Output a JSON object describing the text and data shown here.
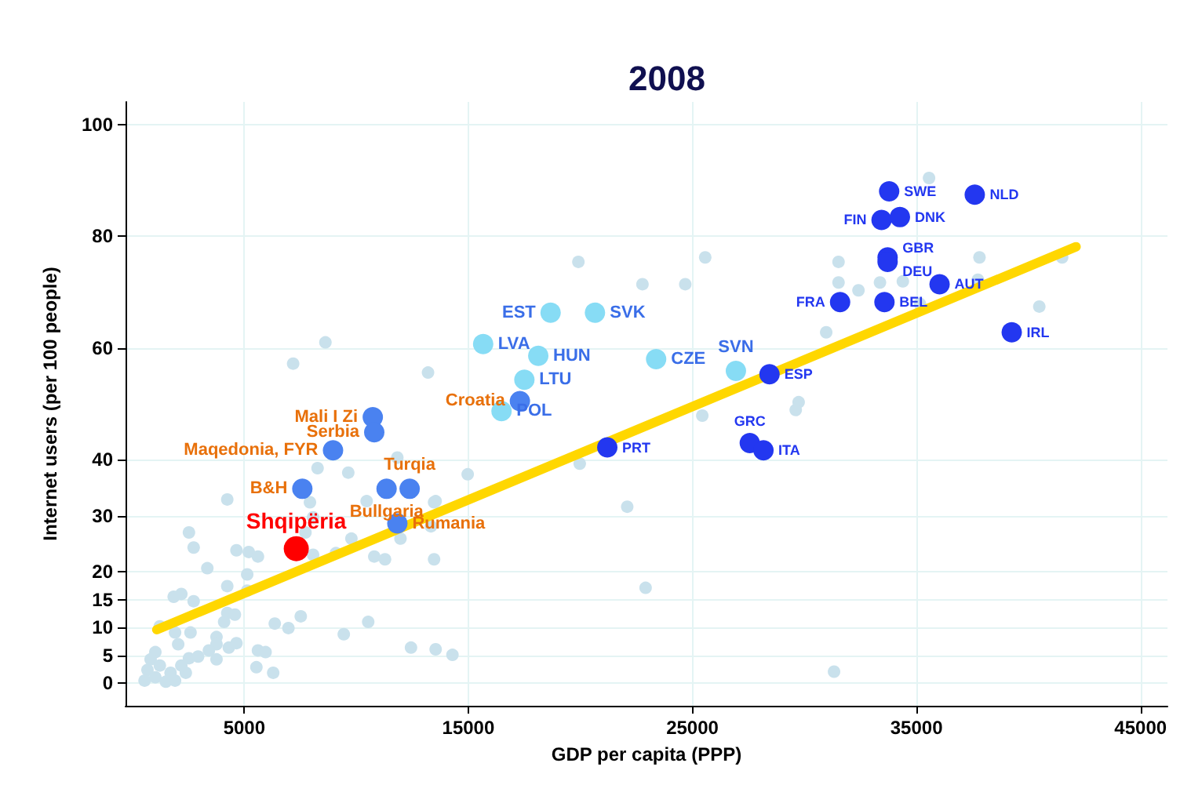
{
  "chart_data": {
    "type": "scatter",
    "title": "2008",
    "xlabel": "GDP per capita (PPP)",
    "ylabel": "Internet users (per 100 people)",
    "xlim": [
      -300,
      46200
    ],
    "xticks": [
      5000,
      15000,
      25000,
      35000,
      45000
    ],
    "ylim": [
      -4,
      104
    ],
    "yticks": [
      0,
      5,
      10,
      15,
      20,
      30,
      40,
      60,
      80,
      100
    ],
    "grid": true,
    "marker": "circle",
    "series": [
      {
        "color": "#c9e1ec",
        "x": [
          19910,
          25570,
          22770,
          35560,
          41500,
          40480,
          31520,
          31520,
          32410,
          33370,
          34390,
          37810,
          37740,
          35150,
          30970,
          24680,
          25440,
          29740,
          29610,
          7180,
          8620,
          13200,
          19970,
          22090,
          22910,
          31320,
          14970,
          11830,
          8270,
          9640,
          13540,
          10460,
          7930,
          9780,
          9090,
          4240,
          2530,
          2740,
          3350,
          4650,
          5200,
          5610,
          5130,
          4240,
          5130,
          1850,
          2190,
          2740,
          4240,
          4580,
          4100,
          1230,
          1910,
          2600,
          3760,
          2050,
          3760,
          3420,
          4310,
          4650,
          2530,
          2940,
          1030,
          820,
          680,
          1030,
          1500,
          1910,
          2390,
          1230,
          550,
          1710,
          2190,
          3760,
          5610,
          5950,
          5540,
          6290,
          6360,
          6970,
          7520,
          9440,
          10530,
          8070,
          7730,
          8070,
          10800,
          11280,
          11970,
          13470,
          13330,
          13470,
          12440,
          13540,
          14290
        ],
        "values": [
          75.4,
          76.2,
          71.4,
          90.4,
          76.2,
          67.4,
          75.4,
          71.7,
          70.3,
          71.7,
          71.9,
          76.2,
          72.2,
          67.9,
          62.8,
          71.4,
          47.9,
          50.3,
          48.9,
          57.2,
          61.0,
          55.6,
          39.3,
          31.6,
          17.1,
          2.1,
          37.4,
          40.4,
          38.5,
          37.7,
          32.6,
          32.6,
          32.4,
          25.9,
          23.3,
          32.9,
          27.0,
          24.3,
          20.6,
          23.8,
          23.5,
          22.7,
          19.5,
          17.4,
          16.6,
          15.5,
          16.0,
          14.7,
          12.6,
          12.3,
          11.0,
          10.2,
          9.1,
          9.1,
          8.3,
          7.0,
          7.0,
          5.9,
          6.4,
          7.2,
          4.5,
          4.8,
          5.6,
          4.3,
          2.4,
          1.1,
          0.3,
          0.5,
          1.9,
          3.2,
          0.5,
          1.9,
          3.2,
          4.3,
          5.9,
          5.6,
          2.9,
          1.9,
          10.7,
          9.9,
          12.0,
          8.8,
          11.0,
          29.7,
          27.0,
          23.0,
          22.7,
          22.2,
          25.9,
          22.2,
          28.1,
          32.4,
          6.4,
          6.1,
          5.1
        ]
      },
      {
        "color": "#87dcf5",
        "x": [
          18670,
          20650,
          15660,
          18120,
          17500,
          23380,
          16480,
          26940
        ],
        "values": [
          66.3,
          66.3,
          60.7,
          58.6,
          54.3,
          58.0,
          48.7,
          55.9
        ],
        "value_labels": [
          "EST",
          "SVK",
          "LVA",
          "HUN",
          "LTU",
          "CZE",
          "POL",
          "SVN"
        ]
      },
      {
        "color": "#2337f0",
        "x": [
          33780,
          37600,
          33440,
          34260,
          33710,
          33710,
          36030,
          31590,
          33570,
          39250,
          28440,
          21200,
          27560,
          28170
        ],
        "values": [
          88.0,
          87.4,
          82.9,
          83.4,
          76.2,
          75.4,
          71.4,
          68.2,
          68.2,
          62.8,
          55.3,
          42.2,
          43.0,
          41.7
        ],
        "value_labels": [
          "SWE",
          "NLD",
          "FIN",
          "DNK",
          "GBR",
          "DEU",
          "AUT",
          "FRA",
          "BEL",
          "IRL",
          "ESP",
          "PRT",
          "GRC",
          "ITA"
        ]
      },
      {
        "color": "#4a82f0",
        "x": [
          10735,
          10800,
          8960,
          7590,
          11350,
          12380,
          11830,
          17300
        ],
        "values": [
          47.6,
          44.9,
          41.7,
          34.8,
          34.8,
          34.8,
          28.6,
          50.5
        ],
        "value_labels": [
          "Mali I Zi",
          "Serbia",
          "Maqedonia, FYR",
          "B&H",
          "Bullgaria",
          "Turqia",
          "Rumania",
          "Croatia"
        ]
      },
      {
        "color": "#ff0000",
        "x": [
          7320
        ],
        "values": [
          24.1
        ],
        "value_labels": [
          "Shqipëria"
        ]
      },
      {
        "type": "line",
        "marker": "none",
        "color": "#ffd700",
        "x": [
          1094,
          42120
        ],
        "values": [
          9.6,
          78.1
        ]
      }
    ]
  }
}
